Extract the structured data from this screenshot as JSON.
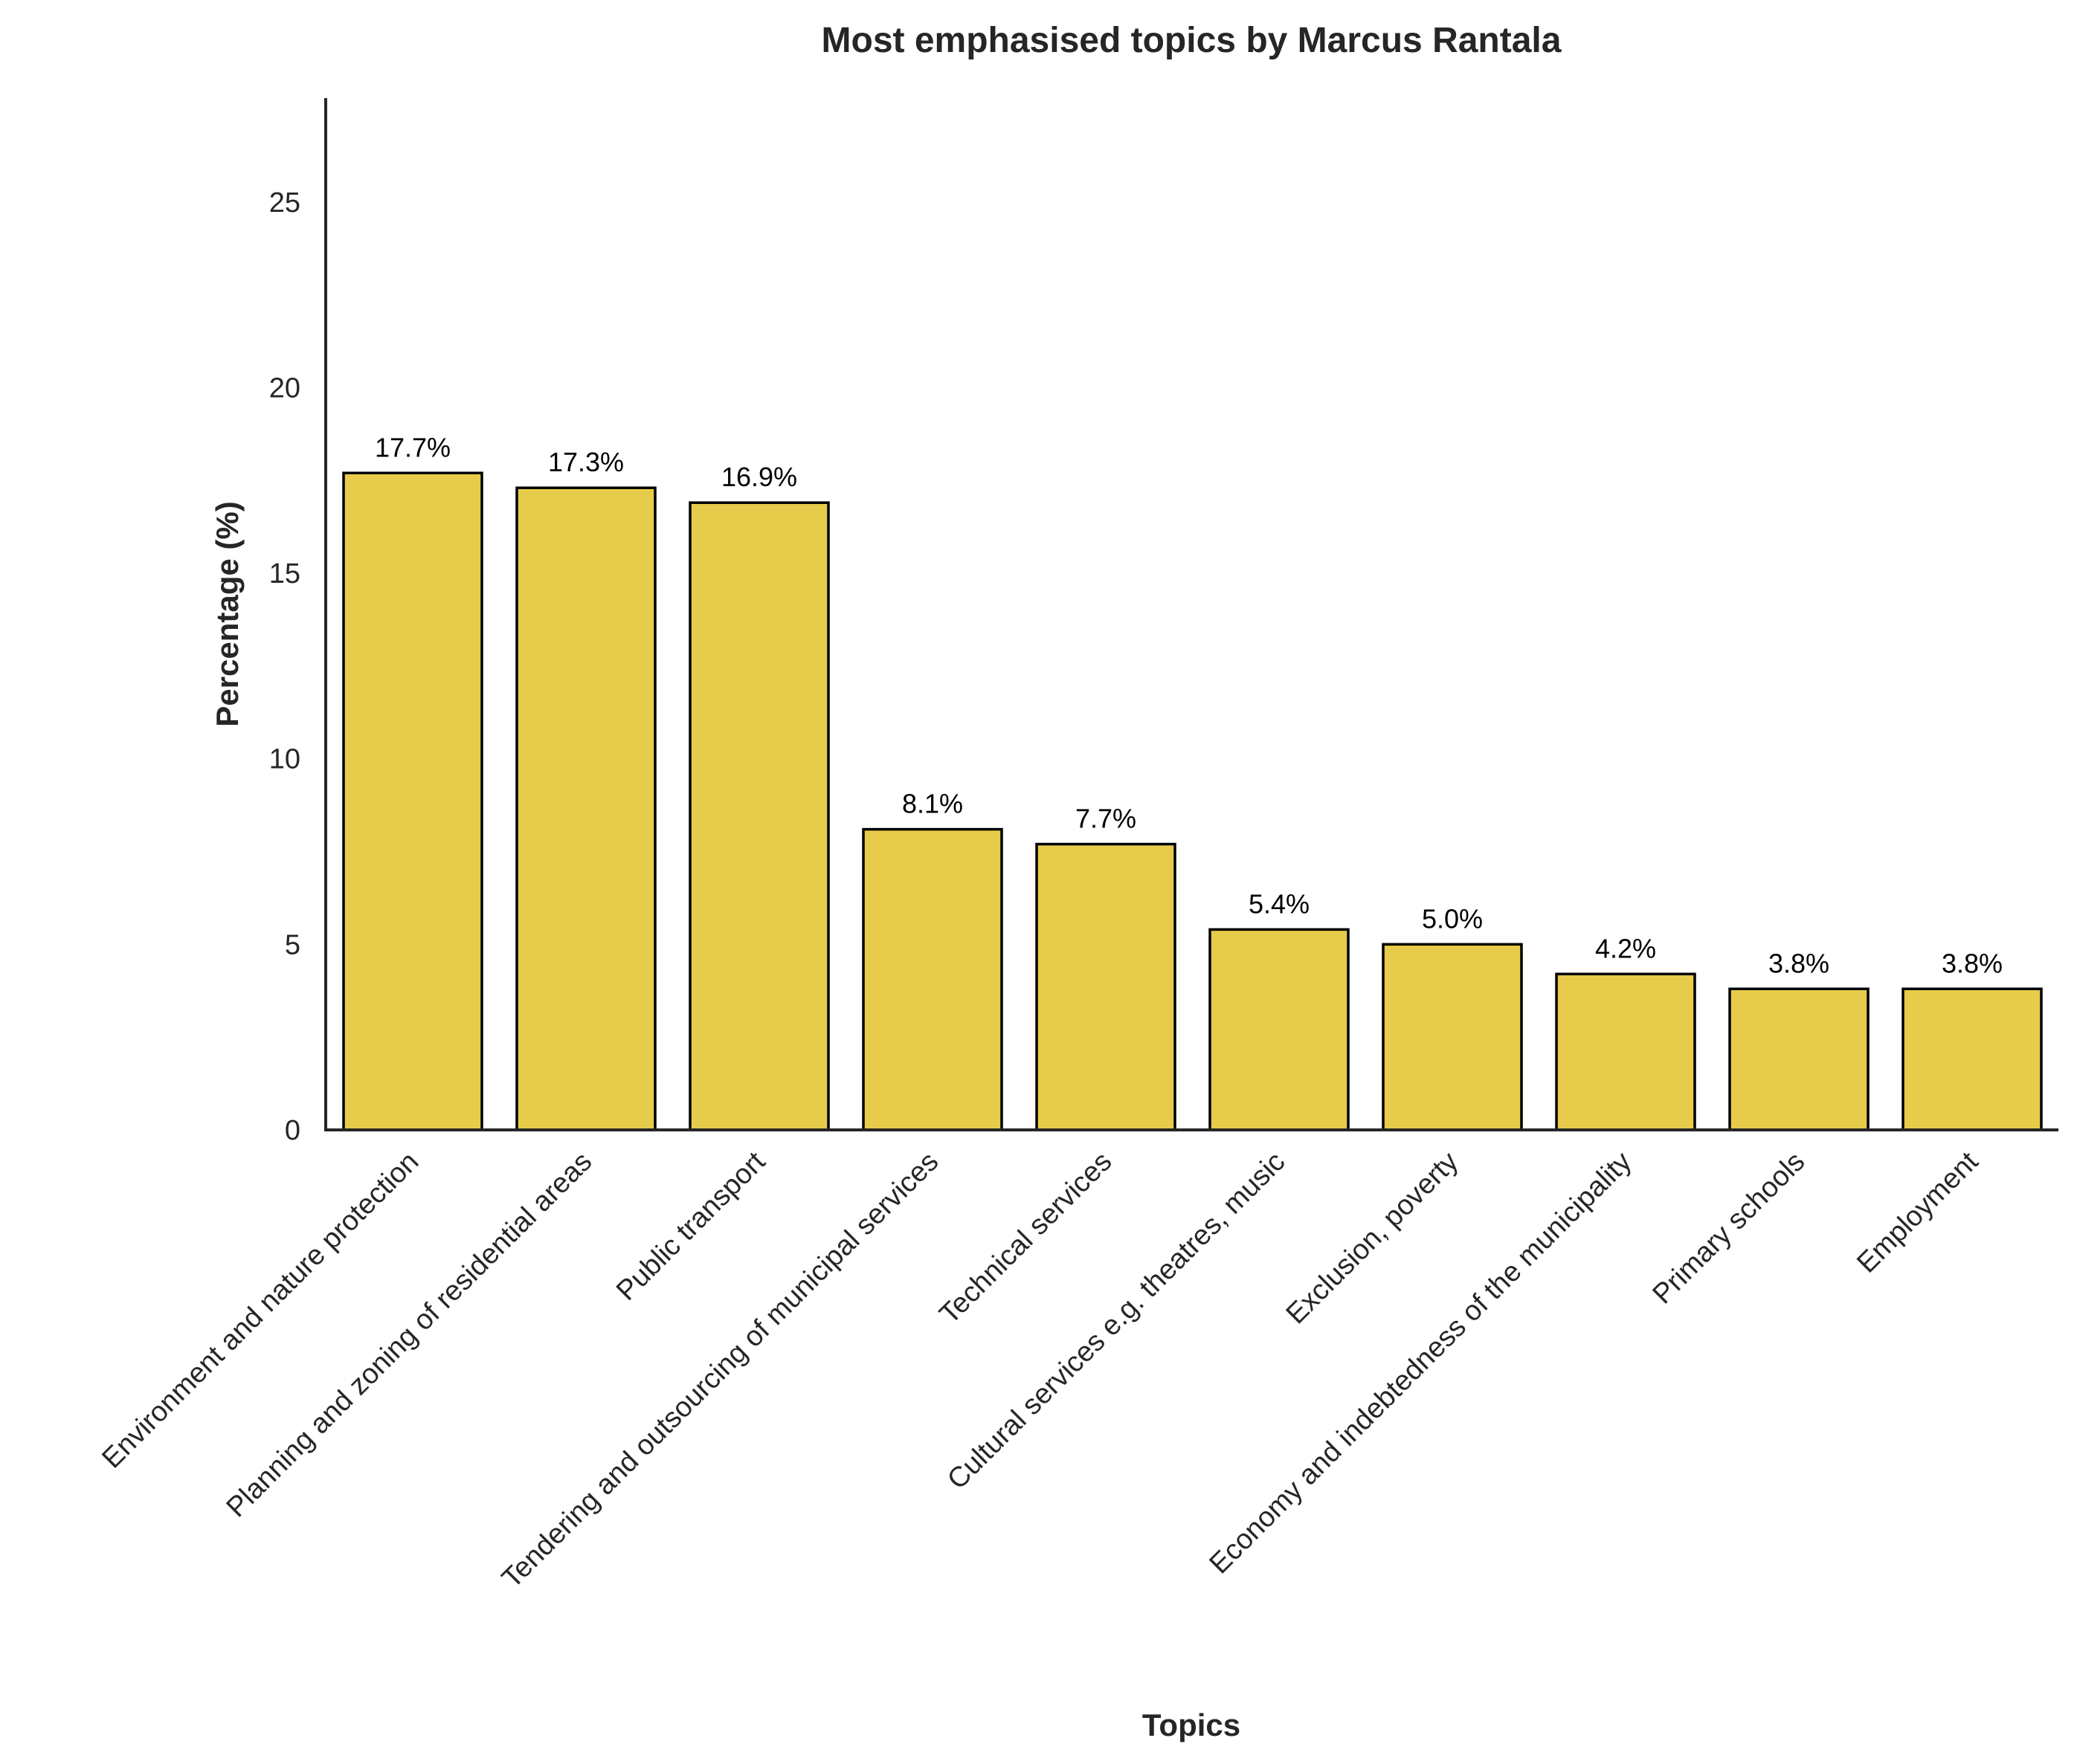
{
  "chart_data": {
    "type": "bar",
    "title": "Most emphasised topics by Marcus Rantala",
    "xlabel": "Topics",
    "ylabel": "Percentage (%)",
    "categories": [
      "Environment and nature protection",
      "Planning and zoning of residential areas",
      "Public transport",
      "Tendering and outsourcing of municipal services",
      "Technical services",
      "Cultural services e.g. theatres, music",
      "Exclusion, poverty",
      "Economy and indebtedness of the municipality",
      "Primary schools",
      "Employment"
    ],
    "values": [
      17.7,
      17.3,
      16.9,
      8.1,
      7.7,
      5.4,
      5.0,
      4.2,
      3.8,
      3.8
    ],
    "data_labels": [
      "17.7%",
      "17.3%",
      "16.9%",
      "8.1%",
      "7.7%",
      "5.4%",
      "5.0%",
      "4.2%",
      "3.8%",
      "3.8%"
    ],
    "ylim": [
      0,
      27.8
    ],
    "yticks": [
      0,
      5,
      10,
      15,
      20,
      25
    ],
    "ytick_labels": [
      "0",
      "5",
      "10",
      "15",
      "20",
      "25"
    ],
    "grid": false,
    "legend": "none",
    "bar_color": "#e6cc4a",
    "bar_edge_color": "#000000"
  }
}
